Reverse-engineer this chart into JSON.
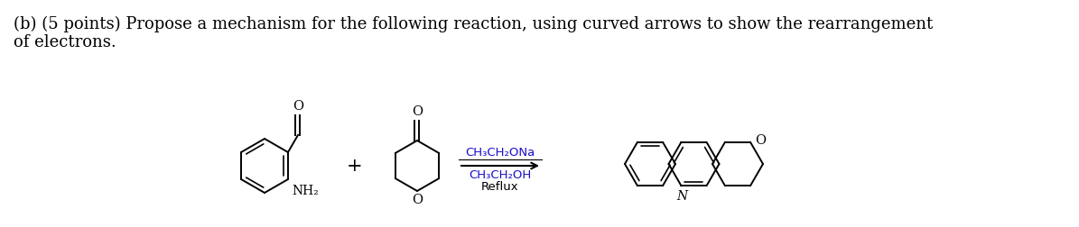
{
  "background_color": "#ffffff",
  "text_line1": "(b) (5 points) Propose a mechanism for the following reaction, using curved arrows to show the rearrangement",
  "text_line2": "of electrons.",
  "reagents_line1": "CH₃CH₂ONa",
  "reagents_line2": "CH₃CH₂OH",
  "reagents_line3": "Reflux",
  "plus_sign": "+",
  "text_color": "#000000",
  "reagent_color": "#1a0dcc",
  "text_fontsize": 13.0,
  "reagent_fontsize": 10.0,
  "label_nh2": "NH₂",
  "label_n": "N",
  "label_o_product": "O"
}
